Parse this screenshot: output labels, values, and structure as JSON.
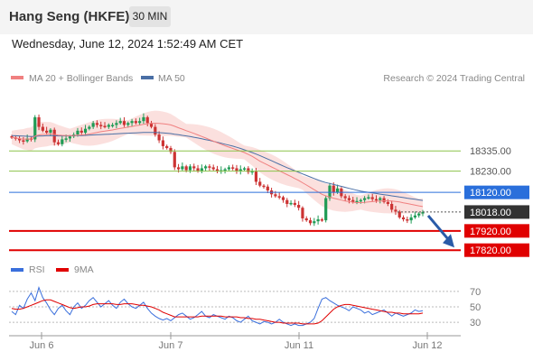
{
  "header": {
    "title": "Hang Seng (HKFE)",
    "interval": "30 MIN"
  },
  "datetime": "Wednesday, June 12, 2024 1:52:49 AM CET",
  "legend": {
    "ma20": "MA 20 + Bollinger Bands",
    "ma50": "MA 50",
    "credit": "Research © 2024 Trading Central",
    "rsi": "RSI",
    "rsi_ma": "9MA"
  },
  "colors": {
    "bull": "#1f9b55",
    "bear": "#cc3333",
    "ma20": "#f08080",
    "ma50": "#4a6fa5",
    "bands": "#fadbd8",
    "support": "#e00000",
    "resistance_green": "#8bc34a",
    "resistance_blue": "#2a6fdb",
    "current": "#333333",
    "forecast_arrow": "#2a5ba8",
    "rsi": "#3a6fdc",
    "rsi_ma": "#e00000"
  },
  "chart_data": [
    {
      "type": "candlestick",
      "title": "Hang Seng (HKFE)",
      "interval": "30 MIN",
      "x_labels": [
        "Jun 6",
        "Jun 7",
        "Jun 11",
        "Jun 12"
      ],
      "ylim": [
        17760,
        18650
      ],
      "levels": [
        {
          "value": 18335.0,
          "label": "18335.00",
          "kind": "resistance-green"
        },
        {
          "value": 18230.0,
          "label": "18230.00",
          "kind": "resistance-green"
        },
        {
          "value": 18120.0,
          "label": "18120.00",
          "kind": "resistance-blue"
        },
        {
          "value": 18018.0,
          "label": "18018.00",
          "kind": "current"
        },
        {
          "value": 17920.0,
          "label": "17920.00",
          "kind": "support"
        },
        {
          "value": 17820.0,
          "label": "17820.00",
          "kind": "support"
        }
      ],
      "closes": [
        18405,
        18400,
        18390,
        18385,
        18400,
        18395,
        18510,
        18460,
        18440,
        18430,
        18445,
        18380,
        18370,
        18395,
        18400,
        18410,
        18420,
        18440,
        18430,
        18450,
        18460,
        18480,
        18470,
        18465,
        18460,
        18470,
        18470,
        18480,
        18490,
        18470,
        18480,
        18490,
        18480,
        18490,
        18510,
        18480,
        18460,
        18420,
        18390,
        18360,
        18350,
        18330,
        18250,
        18240,
        18255,
        18235,
        18255,
        18245,
        18230,
        18245,
        18255,
        18250,
        18240,
        18230,
        18235,
        18240,
        18250,
        18245,
        18230,
        18240,
        18245,
        18225,
        18230,
        18175,
        18155,
        18150,
        18130,
        18110,
        18100,
        18095,
        18080,
        18060,
        18065,
        18055,
        18040,
        17985,
        17975,
        17960,
        17970,
        17980,
        17975,
        18090,
        18155,
        18120,
        18140,
        18100,
        18090,
        18080,
        18070,
        18075,
        18080,
        18090,
        18095,
        18085,
        18080,
        18090,
        18070,
        18060,
        18030,
        18020,
        17990,
        17980,
        17975,
        17990,
        18000,
        18010,
        18018
      ],
      "ma20": [
        18405,
        18402,
        18399,
        18396,
        18397,
        18396,
        18412,
        18418,
        18421,
        18422,
        18424,
        18421,
        18417,
        18416,
        18415,
        18415,
        18415,
        18417,
        18418,
        18420,
        18423,
        18427,
        18431,
        18435,
        18438,
        18441,
        18444,
        18448,
        18452,
        18455,
        18459,
        18462,
        18466,
        18469,
        18473,
        18476,
        18478,
        18479,
        18478,
        18476,
        18474,
        18470,
        18463,
        18455,
        18448,
        18440,
        18433,
        18426,
        18418,
        18410,
        18402,
        18394,
        18386,
        18378,
        18370,
        18362,
        18355,
        18348,
        18341,
        18334,
        18327,
        18317,
        18307,
        18295,
        18282,
        18272,
        18262,
        18252,
        18242,
        18232,
        18222,
        18212,
        18202,
        18192,
        18182,
        18170,
        18158,
        18146,
        18134,
        18122,
        18110,
        18102,
        18096,
        18090,
        18085,
        18080,
        18075,
        18072,
        18069,
        18067,
        18067,
        18068,
        18070,
        18072,
        18074,
        18075,
        18076,
        18076,
        18075,
        18073,
        18070,
        18066,
        18062,
        18058,
        18054,
        18050,
        18046
      ],
      "ma50": [
        18415,
        18414,
        18413,
        18412,
        18411,
        18410,
        18411,
        18412,
        18413,
        18414,
        18415,
        18414,
        18413,
        18413,
        18413,
        18413,
        18414,
        18415,
        18415,
        18416,
        18417,
        18418,
        18419,
        18420,
        18421,
        18422,
        18423,
        18424,
        18425,
        18426,
        18427,
        18428,
        18429,
        18430,
        18431,
        18431,
        18431,
        18431,
        18430,
        18429,
        18427,
        18425,
        18422,
        18419,
        18416,
        18413,
        18410,
        18406,
        18402,
        18398,
        18394,
        18390,
        18385,
        18380,
        18375,
        18370,
        18365,
        18360,
        18354,
        18348,
        18341,
        18334,
        18327,
        18319,
        18311,
        18302,
        18293,
        18284,
        18275,
        18266,
        18257,
        18248,
        18240,
        18232,
        18224,
        18216,
        18208,
        18200,
        18192,
        18184,
        18177,
        18171,
        18166,
        18161,
        18156,
        18151,
        18146,
        18141,
        18136,
        18131,
        18127,
        18123,
        18120,
        18117,
        18114,
        18111,
        18108,
        18105,
        18102,
        18099,
        18096,
        18093,
        18090,
        18087,
        18084,
        18081,
        18078
      ]
    },
    {
      "type": "line",
      "title": "RSI",
      "ylim": [
        15,
        85
      ],
      "y_ticks": [
        70,
        50,
        30
      ],
      "series": [
        {
          "name": "RSI",
          "values": [
            44,
            40,
            52,
            48,
            60,
            68,
            58,
            75,
            62,
            55,
            46,
            40,
            48,
            52,
            45,
            40,
            50,
            55,
            48,
            52,
            58,
            62,
            56,
            50,
            54,
            58,
            52,
            48,
            56,
            60,
            54,
            50,
            48,
            52,
            56,
            48,
            42,
            38,
            35,
            33,
            35,
            32,
            36,
            40,
            42,
            38,
            34,
            36,
            40,
            44,
            38,
            36,
            40,
            38,
            36,
            34,
            38,
            36,
            32,
            30,
            34,
            38,
            32,
            30,
            28,
            31,
            30,
            28,
            30,
            34,
            30,
            28,
            26,
            28,
            26,
            26,
            28,
            30,
            35,
            48,
            60,
            62,
            58,
            55,
            52,
            50,
            48,
            45,
            50,
            48,
            46,
            42,
            44,
            40,
            42,
            44,
            46,
            42,
            38,
            42,
            40,
            38,
            40,
            42,
            46,
            44,
            45
          ]
        },
        {
          "name": "9MA",
          "values": [
            48,
            47,
            47,
            48,
            50,
            52,
            54,
            56,
            58,
            59,
            59,
            57,
            55,
            53,
            51,
            49,
            48,
            49,
            50,
            50,
            51,
            53,
            54,
            54,
            54,
            54,
            54,
            53,
            53,
            54,
            54,
            54,
            53,
            52,
            52,
            51,
            50,
            48,
            46,
            43,
            41,
            39,
            37,
            37,
            37,
            37,
            37,
            37,
            37,
            38,
            38,
            38,
            38,
            38,
            38,
            37,
            37,
            37,
            37,
            36,
            36,
            35,
            35,
            34,
            34,
            33,
            32,
            31,
            30,
            30,
            29,
            29,
            29,
            29,
            29,
            28,
            28,
            28,
            28,
            29,
            32,
            37,
            42,
            47,
            50,
            52,
            53,
            53,
            52,
            51,
            50,
            49,
            48,
            47,
            46,
            45,
            44,
            43,
            43,
            42,
            42,
            41,
            41,
            41,
            41,
            41,
            42
          ]
        }
      ]
    }
  ]
}
